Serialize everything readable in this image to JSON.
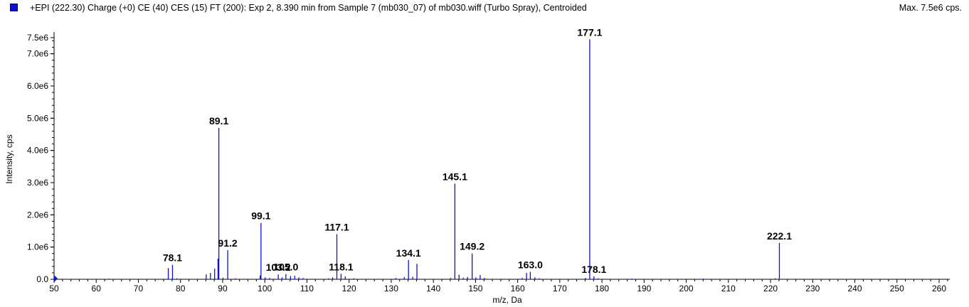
{
  "header": {
    "title": "+EPI (222.30) Charge (+0) CE (40) CES (15) FT (200): Exp 2, 8.390 min from Sample 7 (mb030_07) of mb030.wiff (Turbo Spray), Centroided",
    "max_label": "Max. 7.5e6 cps.",
    "series_color": "#1010d0"
  },
  "chart_data": {
    "type": "bar",
    "title": "+EPI (222.30) Charge (+0) CE (40) CES (15) FT (200): Exp 2, 8.390 min from Sample 7 (mb030_07) of mb030.wiff (Turbo Spray), Centroided",
    "xlabel": "m/z, Da",
    "ylabel": "Intensity, cps",
    "xlim": [
      50,
      264
    ],
    "ylim": [
      0,
      7500000.0
    ],
    "x_ticks": [
      50,
      60,
      70,
      80,
      90,
      100,
      110,
      120,
      130,
      140,
      150,
      160,
      170,
      180,
      190,
      200,
      210,
      220,
      230,
      240,
      250,
      260
    ],
    "y_ticks": [
      {
        "value": 0,
        "label": "0.0"
      },
      {
        "value": 1000000,
        "label": "1.0e6"
      },
      {
        "value": 2000000,
        "label": "2.0e6"
      },
      {
        "value": 3000000,
        "label": "3.0e6"
      },
      {
        "value": 4000000,
        "label": "4.0e6"
      },
      {
        "value": 5000000,
        "label": "5.0e6"
      },
      {
        "value": 6000000,
        "label": "6.0e6"
      },
      {
        "value": 7000000,
        "label": "7.0e6"
      },
      {
        "value": 7500000,
        "label": "7.5e6"
      }
    ],
    "grid": false,
    "color": "#1010d0",
    "peaks": [
      {
        "mz": 63.0,
        "intensity": 20000
      },
      {
        "mz": 65.0,
        "intensity": 15000
      },
      {
        "mz": 77.1,
        "intensity": 350000
      },
      {
        "mz": 78.1,
        "intensity": 450000,
        "label": "78.1"
      },
      {
        "mz": 79.1,
        "intensity": 30000
      },
      {
        "mz": 86.1,
        "intensity": 150000
      },
      {
        "mz": 87.1,
        "intensity": 200000
      },
      {
        "mz": 88.1,
        "intensity": 330000
      },
      {
        "mz": 88.9,
        "intensity": 640000
      },
      {
        "mz": 89.1,
        "intensity": 4700000,
        "label": "89.1"
      },
      {
        "mz": 90.1,
        "intensity": 50000
      },
      {
        "mz": 91.2,
        "intensity": 900000,
        "label": "91.2"
      },
      {
        "mz": 93.1,
        "intensity": 30000
      },
      {
        "mz": 98.9,
        "intensity": 120000
      },
      {
        "mz": 99.1,
        "intensity": 1750000,
        "label": "99.1"
      },
      {
        "mz": 100.1,
        "intensity": 60000
      },
      {
        "mz": 101.1,
        "intensity": 40000
      },
      {
        "mz": 103.2,
        "intensity": 150000,
        "label": "103.2"
      },
      {
        "mz": 104.1,
        "intensity": 60000
      },
      {
        "mz": 105.0,
        "intensity": 160000,
        "label": "105.0"
      },
      {
        "mz": 106.1,
        "intensity": 100000
      },
      {
        "mz": 107.1,
        "intensity": 110000
      },
      {
        "mz": 108.1,
        "intensity": 60000
      },
      {
        "mz": 109.1,
        "intensity": 40000
      },
      {
        "mz": 115.1,
        "intensity": 30000
      },
      {
        "mz": 116.1,
        "intensity": 60000
      },
      {
        "mz": 117.1,
        "intensity": 1400000,
        "label": "117.1"
      },
      {
        "mz": 118.1,
        "intensity": 170000,
        "label": "118.1"
      },
      {
        "mz": 119.1,
        "intensity": 90000
      },
      {
        "mz": 121.1,
        "intensity": 30000
      },
      {
        "mz": 131.1,
        "intensity": 40000
      },
      {
        "mz": 133.1,
        "intensity": 70000
      },
      {
        "mz": 134.1,
        "intensity": 600000,
        "label": "134.1"
      },
      {
        "mz": 135.1,
        "intensity": 80000
      },
      {
        "mz": 136.1,
        "intensity": 480000
      },
      {
        "mz": 144.1,
        "intensity": 40000
      },
      {
        "mz": 145.1,
        "intensity": 2970000,
        "label": "145.1"
      },
      {
        "mz": 146.1,
        "intensity": 140000
      },
      {
        "mz": 147.1,
        "intensity": 50000
      },
      {
        "mz": 148.1,
        "intensity": 70000
      },
      {
        "mz": 149.2,
        "intensity": 800000,
        "label": "149.2"
      },
      {
        "mz": 150.1,
        "intensity": 60000
      },
      {
        "mz": 151.1,
        "intensity": 130000
      },
      {
        "mz": 152.1,
        "intensity": 40000
      },
      {
        "mz": 161.1,
        "intensity": 40000
      },
      {
        "mz": 162.1,
        "intensity": 200000
      },
      {
        "mz": 163.0,
        "intensity": 230000,
        "label": "163.0"
      },
      {
        "mz": 164.1,
        "intensity": 60000
      },
      {
        "mz": 165.1,
        "intensity": 30000
      },
      {
        "mz": 176.1,
        "intensity": 40000
      },
      {
        "mz": 177.1,
        "intensity": 7450000,
        "label": "177.1"
      },
      {
        "mz": 178.1,
        "intensity": 90000,
        "label": "178.1"
      },
      {
        "mz": 179.1,
        "intensity": 30000
      },
      {
        "mz": 187.1,
        "intensity": 20000
      },
      {
        "mz": 204.1,
        "intensity": 20000
      },
      {
        "mz": 221.1,
        "intensity": 30000
      },
      {
        "mz": 222.1,
        "intensity": 1130000,
        "label": "222.1"
      }
    ]
  }
}
